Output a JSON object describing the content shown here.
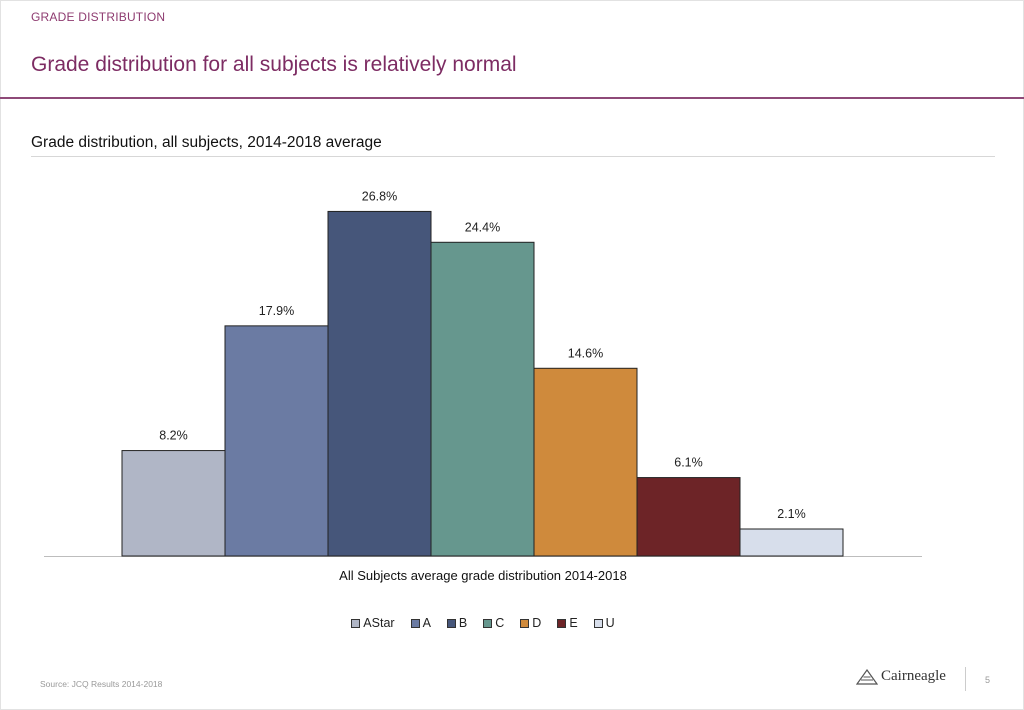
{
  "header": {
    "section_label": "GRADE DISTRIBUTION",
    "headline": "Grade distribution for all subjects is relatively normal"
  },
  "chart_data": {
    "type": "bar",
    "title": "Grade distribution, all subjects, 2014-2018 average",
    "xlabel": "All Subjects average grade distribution 2014-2018",
    "ylabel": "",
    "ylim": [
      0,
      28
    ],
    "grid": false,
    "legend_position": "bottom",
    "series": [
      {
        "name": "AStar",
        "values": [
          8.2
        ],
        "color": "#b0b6c6",
        "label": "8.2%"
      },
      {
        "name": "A",
        "values": [
          17.9
        ],
        "color": "#6b7ba3",
        "label": "17.9%"
      },
      {
        "name": "B",
        "values": [
          26.8
        ],
        "color": "#46567a",
        "label": "26.8%"
      },
      {
        "name": "C",
        "values": [
          24.4
        ],
        "color": "#66978e",
        "label": "24.4%"
      },
      {
        "name": "D",
        "values": [
          14.6
        ],
        "color": "#cf8a3c",
        "label": "14.6%"
      },
      {
        "name": "E",
        "values": [
          6.1
        ],
        "color": "#6d2427",
        "label": "6.1%"
      },
      {
        "name": "U",
        "values": [
          2.1
        ],
        "color": "#d7deeb",
        "label": "2.1%"
      }
    ]
  },
  "footer": {
    "source": "Source: JCQ Results 2014-2018",
    "logo": "Cairneagle",
    "page_number": "5"
  }
}
